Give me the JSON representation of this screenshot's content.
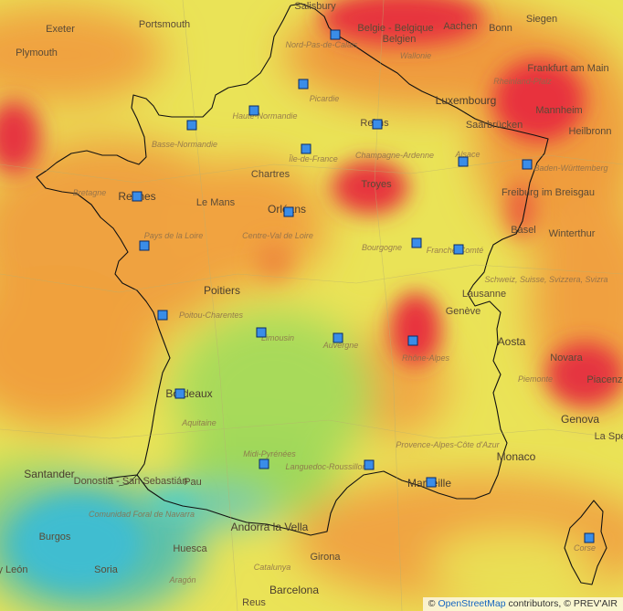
{
  "map": {
    "colors": {
      "red": "#e8303c",
      "orange": "#ef9a3e",
      "yellow": "#ecec50",
      "green": "#9bd858",
      "cyan": "#46c0c8",
      "station_fill": "#3a8de8",
      "station_border": "#0a2a66"
    },
    "labels": {
      "salisbury": "Salisbury",
      "portsmouth": "Portsmouth",
      "exeter": "Exeter",
      "plymouth": "Plymouth",
      "belgie": "Belgie - Belgique",
      "belgien": "Belgien",
      "aachen": "Aachen",
      "siegen": "Siegen",
      "bonn": "Bonn",
      "nord_pas_de_calais": "Nord-Pas-de-Calais",
      "wallonie": "Wallonie",
      "frankfurt": "Frankfurt am Main",
      "rheinland": "Rheinland-Pfalz",
      "luxembourg": "Luxembourg",
      "picardie": "Picardie",
      "saarbrucken": "Saarbrücken",
      "mannheim": "Mannheim",
      "heilbronn": "Heilbronn",
      "reims": "Reims",
      "haute_normandie": "Haute-Normandie",
      "basse_normandie": "Basse-Normandie",
      "ile_de_france": "Île-de-France",
      "champagne": "Champagne-Ardenne",
      "alsace": "Alsace",
      "baden": "Baden-Württemberg",
      "chartres": "Chartres",
      "bretagne": "Bretagne",
      "rennes": "Rennes",
      "le_mans": "Le Mans",
      "troyes": "Troyes",
      "freiburg": "Freiburg im Breisgau",
      "orleans": "Orléans",
      "centre_val_de_loire": "Centre-Val de Loire",
      "pays_de_la_loire": "Pays de la Loire",
      "bourgogne": "Bourgogne",
      "franche_comte": "Franche-Comté",
      "basel": "Basel",
      "winterthur": "Winterthur",
      "schweiz": "Schweiz, Suisse, Svizzera, Svizra",
      "poitiers": "Poitiers",
      "poitou": "Poitou-Charentes",
      "lausanne": "Lausanne",
      "geneve": "Genève",
      "limousin": "Limousin",
      "auvergne": "Auvergne",
      "rhone_alpes": "Rhône-Alpes",
      "aosta": "Aosta",
      "novara": "Novara",
      "piemonte": "Piemonte",
      "piacenza": "Piacenza",
      "bordeaux": "Bordeaux",
      "aquitaine": "Aquitaine",
      "genova": "Genova",
      "la_spezia": "La Spe",
      "midi_pyrenees": "Midi-Pyrénées",
      "paca": "Provence-Alpes-Côte d'Azur",
      "monaco": "Monaco",
      "santander": "Santander",
      "donostia": "Donostia - San Sebastián",
      "pau": "Pau",
      "languedoc": "Languedoc-Roussillon",
      "marseille": "Marseille",
      "navarra": "Comunidad Foral de Navarra",
      "andorra": "Andorra la Vella",
      "burgos": "Burgos",
      "huesca": "Huesca",
      "girona": "Girona",
      "catalunya": "Catalunya",
      "soria": "Soria",
      "aragon": "Aragón",
      "barcelona": "Barcelona",
      "reus": "Reus",
      "leon": "y León",
      "corse": "Corse"
    },
    "attribution": {
      "copy": "©",
      "osm": "OpenStreetMap",
      "contributors": "contributors, ©",
      "prevair": "PREV'AIR"
    }
  }
}
